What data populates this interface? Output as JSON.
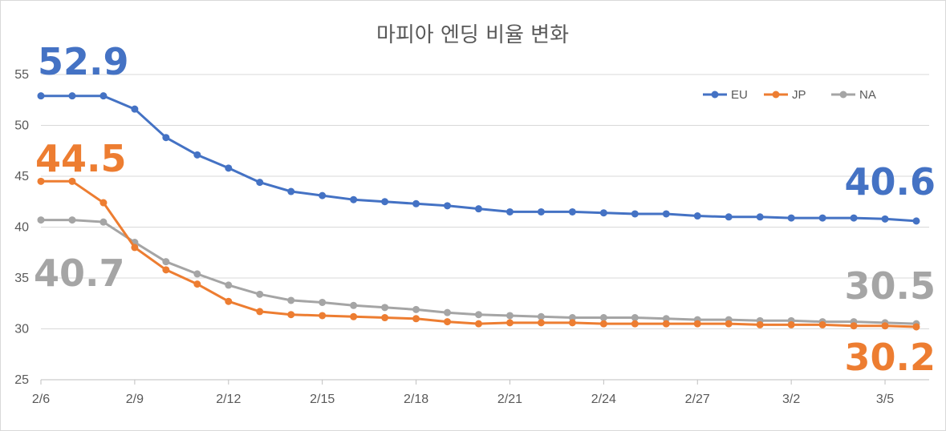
{
  "chart_data": {
    "type": "line",
    "title": "마피아 엔딩 비율 변화",
    "xlabel": "",
    "ylabel": "",
    "ylim": [
      25,
      55
    ],
    "yticks": [
      25,
      30,
      35,
      40,
      45,
      50,
      55
    ],
    "x": [
      "2/6",
      "2/7",
      "2/8",
      "2/9",
      "2/10",
      "2/11",
      "2/12",
      "2/13",
      "2/14",
      "2/15",
      "2/16",
      "2/17",
      "2/18",
      "2/19",
      "2/20",
      "2/21",
      "2/22",
      "2/23",
      "2/24",
      "2/25",
      "2/26",
      "2/27",
      "2/28",
      "3/1",
      "3/2",
      "3/3",
      "3/4",
      "3/5",
      "3/6"
    ],
    "xtick_labels": [
      "2/6",
      "2/9",
      "2/12",
      "2/15",
      "2/18",
      "2/21",
      "2/24",
      "2/27",
      "3/2",
      "3/5"
    ],
    "grid": true,
    "legend": "top-right",
    "series": [
      {
        "name": "EU",
        "color": "#4472c4",
        "values": [
          52.9,
          52.9,
          52.9,
          51.6,
          48.8,
          47.1,
          45.8,
          44.4,
          43.5,
          43.1,
          42.7,
          42.5,
          42.3,
          42.1,
          41.8,
          41.5,
          41.5,
          41.5,
          41.4,
          41.3,
          41.3,
          41.1,
          41.0,
          41.0,
          40.9,
          40.9,
          40.9,
          40.8,
          40.6
        ],
        "start_label": "52.9",
        "end_label": "40.6"
      },
      {
        "name": "JP",
        "color": "#ed7d31",
        "values": [
          44.5,
          44.5,
          42.4,
          38.0,
          35.8,
          34.4,
          32.7,
          31.7,
          31.4,
          31.3,
          31.2,
          31.1,
          31.0,
          30.7,
          30.5,
          30.6,
          30.6,
          30.6,
          30.5,
          30.5,
          30.5,
          30.5,
          30.5,
          30.4,
          30.4,
          30.4,
          30.3,
          30.3,
          30.2
        ],
        "start_label": "44.5",
        "end_label": "30.2"
      },
      {
        "name": "NA",
        "color": "#a5a5a5",
        "values": [
          40.7,
          40.7,
          40.5,
          38.5,
          36.6,
          35.4,
          34.3,
          33.4,
          32.8,
          32.6,
          32.3,
          32.1,
          31.9,
          31.6,
          31.4,
          31.3,
          31.2,
          31.1,
          31.1,
          31.1,
          31.0,
          30.9,
          30.9,
          30.8,
          30.8,
          30.7,
          30.7,
          30.6,
          30.5
        ],
        "start_label": "40.7",
        "end_label": "30.5"
      }
    ]
  }
}
